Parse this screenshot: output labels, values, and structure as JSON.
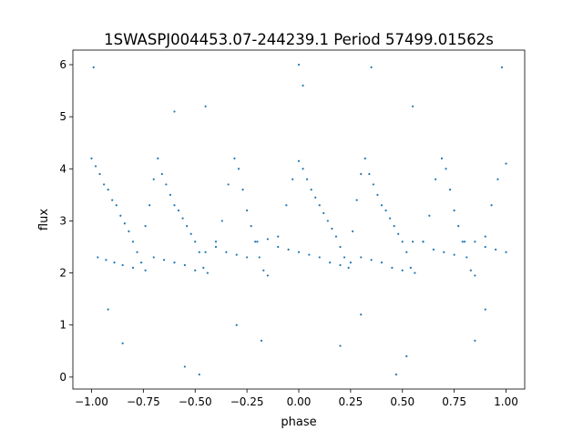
{
  "chart_data": {
    "type": "scatter",
    "title": "1SWASPJ004453.07-244239.1 Period 57499.01562s",
    "xlabel": "phase",
    "ylabel": "flux",
    "xlim": [
      -1.09,
      1.09
    ],
    "ylim": [
      -0.23,
      6.28
    ],
    "xticks": [
      -1.0,
      -0.75,
      -0.5,
      -0.25,
      0.0,
      0.25,
      0.5,
      0.75,
      1.0
    ],
    "xtick_labels": [
      "−1.00",
      "−0.75",
      "−0.50",
      "−0.25",
      "0.00",
      "0.25",
      "0.50",
      "0.75",
      "1.00"
    ],
    "yticks": [
      0,
      1,
      2,
      3,
      4,
      5,
      6
    ],
    "ytick_labels": [
      "0",
      "1",
      "2",
      "3",
      "4",
      "5",
      "6"
    ],
    "grid": false,
    "color": "#1f77b4",
    "points": [
      [
        -1.0,
        4.2
      ],
      [
        -0.98,
        4.05
      ],
      [
        -0.96,
        3.9
      ],
      [
        -0.94,
        3.7
      ],
      [
        -0.92,
        3.6
      ],
      [
        -0.9,
        3.4
      ],
      [
        -0.88,
        3.3
      ],
      [
        -0.86,
        3.1
      ],
      [
        -0.84,
        2.95
      ],
      [
        -0.82,
        2.8
      ],
      [
        -0.8,
        2.6
      ],
      [
        -0.78,
        2.4
      ],
      [
        -0.76,
        2.2
      ],
      [
        -0.74,
        2.05
      ],
      [
        -0.74,
        2.9
      ],
      [
        -0.72,
        3.3
      ],
      [
        -0.7,
        3.8
      ],
      [
        -0.68,
        4.2
      ],
      [
        -0.66,
        3.9
      ],
      [
        -0.64,
        3.7
      ],
      [
        -0.62,
        3.5
      ],
      [
        -0.6,
        3.3
      ],
      [
        -0.58,
        3.2
      ],
      [
        -0.56,
        3.05
      ],
      [
        -0.54,
        2.9
      ],
      [
        -0.52,
        2.75
      ],
      [
        -0.5,
        2.6
      ],
      [
        -0.48,
        2.4
      ],
      [
        -0.46,
        2.1
      ],
      [
        -0.44,
        2.0
      ],
      [
        -0.4,
        2.6
      ],
      [
        -0.37,
        3.0
      ],
      [
        -0.34,
        3.7
      ],
      [
        -0.31,
        4.2
      ],
      [
        -0.29,
        4.0
      ],
      [
        -0.27,
        3.6
      ],
      [
        -0.25,
        3.2
      ],
      [
        -0.23,
        2.9
      ],
      [
        -0.21,
        2.6
      ],
      [
        -0.19,
        2.3
      ],
      [
        -0.17,
        2.05
      ],
      [
        -0.15,
        1.95
      ],
      [
        -0.1,
        2.7
      ],
      [
        -0.06,
        3.3
      ],
      [
        -0.03,
        3.8
      ],
      [
        0.0,
        4.15
      ],
      [
        0.02,
        4.0
      ],
      [
        0.04,
        3.8
      ],
      [
        0.06,
        3.6
      ],
      [
        0.08,
        3.45
      ],
      [
        0.1,
        3.3
      ],
      [
        0.12,
        3.15
      ],
      [
        0.14,
        3.0
      ],
      [
        0.16,
        2.85
      ],
      [
        0.18,
        2.7
      ],
      [
        0.2,
        2.5
      ],
      [
        0.22,
        2.3
      ],
      [
        0.24,
        2.1
      ],
      [
        0.26,
        2.8
      ],
      [
        0.28,
        3.4
      ],
      [
        0.3,
        3.9
      ],
      [
        0.32,
        4.2
      ],
      [
        0.34,
        3.9
      ],
      [
        0.36,
        3.7
      ],
      [
        0.38,
        3.5
      ],
      [
        0.4,
        3.3
      ],
      [
        0.42,
        3.2
      ],
      [
        0.44,
        3.05
      ],
      [
        0.46,
        2.9
      ],
      [
        0.48,
        2.75
      ],
      [
        0.5,
        2.6
      ],
      [
        0.52,
        2.4
      ],
      [
        0.54,
        2.1
      ],
      [
        0.56,
        2.0
      ],
      [
        0.6,
        2.6
      ],
      [
        0.63,
        3.1
      ],
      [
        0.66,
        3.8
      ],
      [
        0.69,
        4.2
      ],
      [
        0.71,
        4.0
      ],
      [
        0.73,
        3.6
      ],
      [
        0.75,
        3.2
      ],
      [
        0.77,
        2.9
      ],
      [
        0.79,
        2.6
      ],
      [
        0.81,
        2.3
      ],
      [
        0.83,
        2.05
      ],
      [
        0.85,
        1.95
      ],
      [
        0.9,
        2.7
      ],
      [
        0.93,
        3.3
      ],
      [
        0.96,
        3.8
      ],
      [
        1.0,
        4.1
      ],
      [
        -0.97,
        2.3
      ],
      [
        -0.93,
        2.25
      ],
      [
        -0.89,
        2.2
      ],
      [
        -0.85,
        2.15
      ],
      [
        -0.8,
        2.1
      ],
      [
        -0.7,
        2.3
      ],
      [
        -0.65,
        2.25
      ],
      [
        -0.6,
        2.2
      ],
      [
        -0.55,
        2.15
      ],
      [
        -0.5,
        2.05
      ],
      [
        -0.45,
        2.4
      ],
      [
        -0.4,
        2.5
      ],
      [
        -0.35,
        2.4
      ],
      [
        -0.3,
        2.35
      ],
      [
        -0.25,
        2.3
      ],
      [
        -0.2,
        2.6
      ],
      [
        -0.15,
        2.65
      ],
      [
        -0.1,
        2.5
      ],
      [
        -0.05,
        2.45
      ],
      [
        0.0,
        2.4
      ],
      [
        0.05,
        2.35
      ],
      [
        0.1,
        2.3
      ],
      [
        0.15,
        2.2
      ],
      [
        0.2,
        2.15
      ],
      [
        0.25,
        2.2
      ],
      [
        0.3,
        2.3
      ],
      [
        0.35,
        2.25
      ],
      [
        0.4,
        2.2
      ],
      [
        0.45,
        2.1
      ],
      [
        0.5,
        2.05
      ],
      [
        0.55,
        2.6
      ],
      [
        0.6,
        2.6
      ],
      [
        0.65,
        2.45
      ],
      [
        0.7,
        2.4
      ],
      [
        0.75,
        2.35
      ],
      [
        0.8,
        2.6
      ],
      [
        0.85,
        2.6
      ],
      [
        0.9,
        2.5
      ],
      [
        0.95,
        2.45
      ],
      [
        1.0,
        2.4
      ],
      [
        -0.99,
        5.95
      ],
      [
        -0.6,
        5.1
      ],
      [
        0.0,
        6.0
      ],
      [
        0.02,
        5.6
      ],
      [
        0.35,
        5.95
      ],
      [
        0.98,
        5.95
      ],
      [
        -0.45,
        5.2
      ],
      [
        0.55,
        5.2
      ],
      [
        -0.92,
        1.3
      ],
      [
        -0.85,
        0.65
      ],
      [
        -0.55,
        0.2
      ],
      [
        -0.48,
        0.05
      ],
      [
        -0.18,
        0.7
      ],
      [
        0.2,
        0.6
      ],
      [
        0.47,
        0.05
      ],
      [
        0.52,
        0.4
      ],
      [
        0.85,
        0.7
      ],
      [
        0.9,
        1.3
      ],
      [
        -0.3,
        1.0
      ],
      [
        0.3,
        1.2
      ]
    ]
  }
}
